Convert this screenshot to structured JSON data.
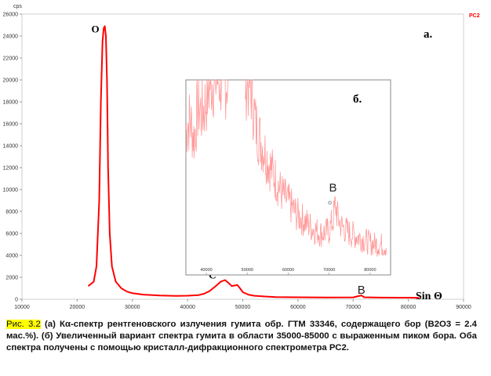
{
  "chart_data": [
    {
      "type": "line",
      "title": "",
      "y_unit": "cps",
      "series_label": "PC2",
      "panel_label": "a.",
      "x_axis_label": "Sin Θ",
      "xlim": [
        10000,
        90000
      ],
      "ylim": [
        0,
        26000
      ],
      "x_ticks": [
        "10000",
        "20000",
        "30000",
        "40000",
        "50000",
        "60000",
        "70000",
        "80000",
        "90000"
      ],
      "y_ticks": [
        "0",
        "2000",
        "4000",
        "6000",
        "8000",
        "10000",
        "12000",
        "14000",
        "16000",
        "18000",
        "20000",
        "22000",
        "24000",
        "26000"
      ],
      "grid": false,
      "series": [
        {
          "name": "PC2",
          "color": "#ff0000",
          "x": [
            22000,
            23000,
            23500,
            24000,
            24300,
            24600,
            24800,
            25000,
            25200,
            25400,
            25600,
            25900,
            26300,
            27000,
            28000,
            29000,
            30000,
            32000,
            35000,
            38000,
            40000,
            42000,
            43000,
            44000,
            45000,
            46000,
            46800,
            47500,
            48000,
            48500,
            49000,
            49500,
            50000,
            51000,
            52000,
            54000,
            56000,
            60000,
            65000,
            70000,
            71500,
            72000,
            75000,
            80000,
            82000
          ],
          "y": [
            1200,
            1600,
            3000,
            9000,
            18000,
            23500,
            24700,
            24900,
            24000,
            20000,
            12000,
            6000,
            3000,
            1600,
            1000,
            700,
            550,
            420,
            340,
            300,
            320,
            380,
            500,
            750,
            1150,
            1600,
            1750,
            1450,
            1200,
            1250,
            1300,
            1000,
            650,
            420,
            320,
            250,
            200,
            180,
            160,
            170,
            350,
            180,
            150,
            140,
            130
          ]
        }
      ],
      "annotations": [
        {
          "label": "O",
          "x": 25000,
          "y": 24900
        },
        {
          "label": "C",
          "x": 46500,
          "y": 1750
        },
        {
          "label": "B",
          "x": 71500,
          "y": 350
        }
      ]
    },
    {
      "type": "line",
      "title": "",
      "panel_label": "б.",
      "xlim": [
        35000,
        85000
      ],
      "ylim": [
        0,
        800
      ],
      "x_ticks": [
        "40000",
        "50000",
        "60000",
        "70000",
        "80000"
      ],
      "grid": false,
      "series": [
        {
          "name": "",
          "color": "#ff9999",
          "x": [
            35000,
            36000,
            37000,
            38000,
            39000,
            40000,
            41000,
            42000,
            43000,
            44000,
            45000,
            50000,
            51000,
            52000,
            53000,
            54000,
            55000,
            56000,
            57000,
            58000,
            59000,
            60000,
            62000,
            64000,
            66000,
            68000,
            70000,
            71000,
            71500,
            72000,
            73000,
            75000,
            78000,
            80000,
            82000,
            84000
          ],
          "y": [
            600,
            640,
            560,
            700,
            660,
            720,
            800,
            800,
            800,
            800,
            800,
            800,
            760,
            620,
            560,
            520,
            470,
            430,
            390,
            350,
            320,
            300,
            250,
            220,
            190,
            170,
            180,
            230,
            290,
            240,
            200,
            170,
            150,
            130,
            125,
            120
          ]
        }
      ],
      "annotations": [
        {
          "label": "B",
          "x": 71500,
          "y": 290
        }
      ]
    }
  ],
  "caption": {
    "figure_label": "Рис. 3.2",
    "text": " (а) Кα-спектр рентгеновского излучения гумита обр. ГТМ 33346, содержащего бор (В2О3 = 2.4 мас.%). (б) Увеличенный вариант спектра гумита в области 35000-85000 с выраженным пиком бора. Оба спектра получены с помощью кристалл-дифракционного спектрометра РС2."
  }
}
